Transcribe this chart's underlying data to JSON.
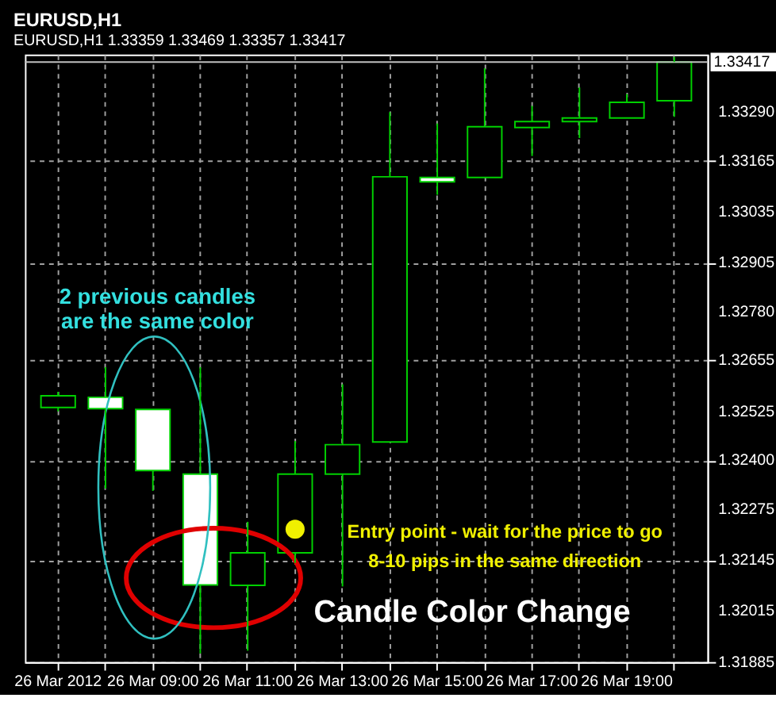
{
  "chart_data": {
    "type": "candlestick",
    "title": "EURUSD,H1",
    "subtitle": "EURUSD,H1  1.33359 1.33469 1.33357 1.33417",
    "categories": [
      "26 Mar 2012",
      null,
      "26 Mar 09:00",
      null,
      "26 Mar 11:00",
      null,
      "26 Mar 13:00",
      null,
      "26 Mar 15:00",
      null,
      "26 Mar 17:00",
      null,
      "26 Mar 19:00",
      null
    ],
    "series": [
      {
        "type": "scatter",
        "color": "#f0f000",
        "values": [
          null,
          null,
          null,
          null,
          null,
          1.32224,
          null,
          null,
          null,
          null,
          null,
          null,
          null,
          null
        ]
      }
    ],
    "ohlc": [
      [
        1.32535,
        1.32575,
        1.32525,
        1.32565
      ],
      [
        1.32561,
        1.32638,
        1.32328,
        1.32532
      ],
      [
        1.3253,
        1.3253,
        1.32322,
        1.32374
      ],
      [
        1.32365,
        1.32638,
        1.31907,
        1.32082
      ],
      [
        1.32081,
        1.32243,
        1.31914,
        1.32164
      ],
      [
        1.32164,
        1.32449,
        1.32138,
        1.32365
      ],
      [
        1.32365,
        1.32594,
        1.32078,
        1.3244
      ],
      [
        1.32447,
        1.33289,
        1.32447,
        1.33124
      ],
      [
        1.33122,
        1.3326,
        1.33078,
        1.33111
      ],
      [
        1.33122,
        1.33401,
        1.33122,
        1.33252
      ],
      [
        1.3325,
        1.33305,
        1.33177,
        1.33265
      ],
      [
        1.33265,
        1.33352,
        1.33223,
        1.33274
      ],
      [
        1.33274,
        1.33335,
        1.33274,
        1.33314
      ],
      [
        1.33318,
        1.3343,
        1.33277,
        1.33417
      ]
    ],
    "color": "#00d000",
    "colors": [
      "#000000",
      "#ffffff",
      "#ffffff",
      "#ffffff",
      "#000000",
      "#000000",
      "#000000",
      "#000000",
      "#ffffff",
      "#000000",
      "#000000",
      "#000000",
      "#000000",
      "#000000"
    ],
    "ylim": [
      1.31885,
      1.33436
    ],
    "yticks": [
      1.31885,
      1.32015,
      1.32145,
      1.32275,
      {
        "value": 1.324,
        "label": "1.32400"
      },
      1.32525,
      1.32655,
      {
        "value": 1.3278,
        "label": "1.32780"
      },
      1.32905,
      1.33035,
      1.33165,
      {
        "value": 1.3329,
        "label": "1.33290"
      }
    ],
    "ref_lines": [
      {
        "axis": "y",
        "value": 1.33417,
        "label": "1.33417",
        "color": "#c0c0c0"
      }
    ],
    "grid": true,
    "annotations": [
      "2 previous candles\nare the same color",
      "Entry point - wait for the price to go\n8-10 pips in the same direction",
      "Candle Color Change"
    ]
  }
}
